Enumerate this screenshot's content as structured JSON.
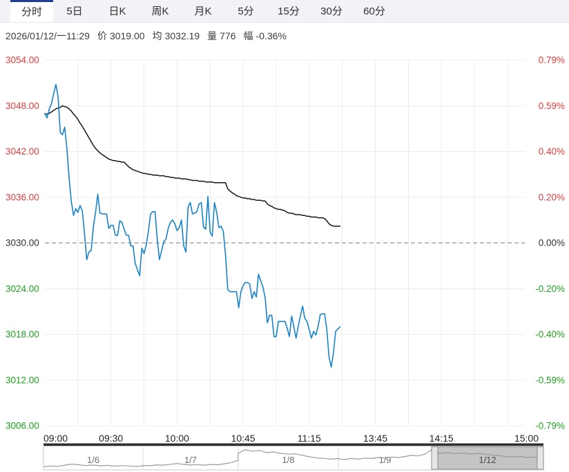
{
  "tabs": [
    {
      "label": "分时",
      "active": true
    },
    {
      "label": "5日",
      "active": false
    },
    {
      "label": "日K",
      "active": false
    },
    {
      "label": "周K",
      "active": false
    },
    {
      "label": "月K",
      "active": false
    },
    {
      "label": "5分",
      "active": false
    },
    {
      "label": "15分",
      "active": false
    },
    {
      "label": "30分",
      "active": false
    },
    {
      "label": "60分",
      "active": false
    }
  ],
  "info": {
    "datetime": "2026/01/12/一11:29",
    "price_label": "价",
    "price": "3019.00",
    "avg_label": "均",
    "avg": "3032.19",
    "volume_label": "量",
    "volume": "776",
    "range_label": "幅",
    "range": "-0.36%"
  },
  "colors": {
    "up_red": "#e03b3b",
    "down_green": "#1ca31c",
    "neutral": "#2e2e2e",
    "price_line": "#1583c9",
    "avg_line": "#141414",
    "grid": "#ececec",
    "dashed_line": "#7a7a7a",
    "time_label": "#222222",
    "nav_line": "#9a9a9a",
    "nav_label": "#6e6e6e",
    "nav_selected_label": "#4a4a4a",
    "nav_selection_fill": "rgba(148,148,148,0.55)",
    "nav_selection_border": "#8f8f8f",
    "nav_handle_fill": "#e6e6e6",
    "nav_handle_border": "#8a8a8a",
    "nav_topbar": "#2f2f2f",
    "nav_box_border": "#c8c8c8",
    "nav_separator": "#dddddd"
  },
  "chart_data": {
    "type": "line",
    "title": "",
    "prev_close": 3030.0,
    "current_price": 3019.0,
    "current_avg": 3032.19,
    "x_axis": {
      "tick_labels": [
        "09:00",
        "09:30",
        "10:00",
        "10:45",
        "11:15",
        "13:45",
        "14:15",
        "15:00"
      ],
      "tick_minutes": [
        0,
        30,
        60,
        90,
        120,
        150,
        180,
        225
      ],
      "grid_minutes": [
        15,
        30,
        45,
        60,
        75,
        90,
        105,
        120,
        135,
        150,
        165,
        180,
        195,
        210
      ],
      "total_minutes": 225,
      "session_note": "09:00-10:15 10:30-11:30 13:30-15:00"
    },
    "y_axis_left": {
      "ticks": [
        3054,
        3048,
        3042,
        3036,
        3030,
        3024,
        3018,
        3012,
        3006
      ],
      "tick_labels": [
        "3054.00",
        "3048.00",
        "3042.00",
        "3036.00",
        "3030.00",
        "3024.00",
        "3018.00",
        "3012.00",
        "3006.00"
      ],
      "tick_colors": [
        "#e03b3b",
        "#e03b3b",
        "#e03b3b",
        "#e03b3b",
        "#2e2e2e",
        "#1ca31c",
        "#1ca31c",
        "#1ca31c",
        "#1ca31c"
      ]
    },
    "y_axis_right": {
      "tick_labels": [
        "0.79%",
        "0.59%",
        "0.40%",
        "0.20%",
        "0.00%",
        "-0.20%",
        "-0.40%",
        "-0.59%",
        "-0.79%"
      ],
      "tick_colors": [
        "#e03b3b",
        "#e03b3b",
        "#e03b3b",
        "#e03b3b",
        "#2e2e2e",
        "#1ca31c",
        "#1ca31c",
        "#1ca31c",
        "#1ca31c"
      ]
    },
    "series": [
      {
        "name": "price",
        "color": "#1583c9",
        "start_minute": 0,
        "values": [
          3047.0,
          3046.4,
          3047.6,
          3048.3,
          3049.6,
          3050.8,
          3049.2,
          3044.5,
          3044.2,
          3045.2,
          3042.4,
          3038.5,
          3035.4,
          3033.6,
          3034.5,
          3034.0,
          3034.9,
          3034.2,
          3031.2,
          3027.8,
          3028.8,
          3029.0,
          3032.1,
          3034.0,
          3036.4,
          3033.9,
          3033.8,
          3033.8,
          3033.8,
          3031.9,
          3032.3,
          3032.3,
          3031.0,
          3031.0,
          3032.9,
          3032.7,
          3031.8,
          3031.0,
          3031.0,
          3029.6,
          3029.6,
          3027.3,
          3026.5,
          3025.7,
          3029.3,
          3028.6,
          3029.7,
          3031.5,
          3033.8,
          3034.1,
          3034.1,
          3030.5,
          3027.8,
          3029.0,
          3030.2,
          3030.5,
          3031.9,
          3032.7,
          3033.0,
          3032.5,
          3031.6,
          3032.0,
          3033.0,
          3029.6,
          3028.8,
          3034.7,
          3035.3,
          3033.8,
          3033.9,
          3034.1,
          3035.1,
          3035.3,
          3032.1,
          3031.8,
          3036.1,
          3031.4,
          3030.9,
          3035.3,
          3034.0,
          3032.0,
          3032.2,
          3031.5,
          3028.4,
          3023.9,
          3023.6,
          3023.6,
          3023.6,
          3023.6,
          3021.5,
          3023.6,
          3024.4,
          3024.8,
          3024.8,
          3024.6,
          3022.7,
          3023.6,
          3022.9,
          3025.9,
          3025.0,
          3024.2,
          3022.8,
          3019.5,
          3020.5,
          3020.5,
          3017.7,
          3017.7,
          3019.7,
          3019.7,
          3019.7,
          3019.7,
          3018.8,
          3017.7,
          3020.4,
          3019.0,
          3017.5,
          3019.0,
          3020.4,
          3021.7,
          3020.1,
          3019.7,
          3018.6,
          3017.5,
          3018.4,
          3017.9,
          3019.0,
          3020.6,
          3020.7,
          3020.7,
          3018.6,
          3015.0,
          3013.7,
          3015.6,
          3018.4,
          3018.7,
          3019.0
        ]
      },
      {
        "name": "average",
        "color": "#141414",
        "start_minute": 0,
        "values": [
          3046.9,
          3046.9,
          3047.0,
          3047.2,
          3047.4,
          3047.6,
          3047.7,
          3047.8,
          3048.0,
          3047.9,
          3047.8,
          3047.6,
          3047.3,
          3046.9,
          3046.6,
          3046.2,
          3045.7,
          3045.3,
          3044.8,
          3044.3,
          3043.8,
          3043.3,
          3042.8,
          3042.4,
          3042.1,
          3041.8,
          3041.6,
          3041.4,
          3041.2,
          3041.0,
          3040.9,
          3040.8,
          3040.8,
          3040.7,
          3040.7,
          3040.6,
          3040.6,
          3040.3,
          3040.0,
          3039.8,
          3039.6,
          3039.5,
          3039.4,
          3039.3,
          3039.2,
          3039.1,
          3039.1,
          3039.0,
          3039.0,
          3038.9,
          3038.9,
          3038.9,
          3038.8,
          3038.8,
          3038.8,
          3038.7,
          3038.7,
          3038.6,
          3038.6,
          3038.5,
          3038.5,
          3038.5,
          3038.4,
          3038.4,
          3038.4,
          3038.3,
          3038.3,
          3038.2,
          3038.2,
          3038.2,
          3038.1,
          3038.1,
          3038.1,
          3038.0,
          3038.0,
          3038.0,
          3038.0,
          3037.9,
          3037.9,
          3037.9,
          3037.9,
          3037.9,
          3037.9,
          3037.1,
          3036.8,
          3036.6,
          3036.4,
          3036.2,
          3036.1,
          3036.0,
          3035.9,
          3035.9,
          3035.8,
          3035.8,
          3035.7,
          3035.7,
          3035.6,
          3035.6,
          3035.6,
          3035.5,
          3035.5,
          3035.1,
          3034.9,
          3034.8,
          3034.6,
          3034.5,
          3034.4,
          3034.4,
          3034.3,
          3034.2,
          3034.0,
          3033.9,
          3033.9,
          3033.8,
          3033.7,
          3033.7,
          3033.7,
          3033.6,
          3033.6,
          3033.5,
          3033.5,
          3033.4,
          3033.4,
          3033.4,
          3033.3,
          3033.3,
          3033.3,
          3033.2,
          3032.9,
          3032.5,
          3032.3,
          3032.2,
          3032.2,
          3032.2,
          3032.2
        ]
      }
    ]
  },
  "navigator": {
    "days": [
      {
        "label": "1/6"
      },
      {
        "label": "1/7"
      },
      {
        "label": "1/8"
      },
      {
        "label": "1/9"
      },
      {
        "label": "1/12"
      }
    ],
    "selected_day": "1/12",
    "selected_index": 4,
    "points_per_day": 15,
    "series": [
      0.06,
      0.1,
      0.08,
      0.14,
      0.2,
      0.16,
      0.12,
      0.15,
      0.11,
      0.13,
      0.09,
      0.12,
      0.1,
      0.08,
      0.1,
      0.13,
      0.11,
      0.16,
      0.14,
      0.19,
      0.23,
      0.18,
      0.15,
      0.17,
      0.14,
      0.18,
      0.16,
      0.22,
      0.28,
      0.4,
      0.78,
      0.95,
      0.88,
      0.92,
      0.8,
      0.84,
      0.76,
      0.72,
      0.74,
      0.66,
      0.58,
      0.52,
      0.5,
      0.46,
      0.5,
      0.47,
      0.44,
      0.5,
      0.46,
      0.52,
      0.49,
      0.55,
      0.51,
      0.57,
      0.54,
      0.6,
      0.66,
      0.63,
      0.72,
      0.95,
      0.82,
      0.77,
      0.8,
      0.75,
      0.78,
      0.73,
      0.76,
      0.7,
      0.66,
      0.62,
      0.57,
      0.6,
      0.55,
      0.57,
      0.56
    ]
  }
}
